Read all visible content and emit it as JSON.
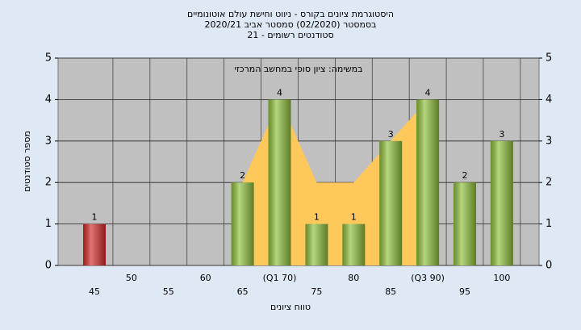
{
  "chart_data": {
    "type": "bar",
    "title": [
      "היסטוגרמת ציונים בקורס - ניווט וחישת עולם אוטונומיים",
      "בסמסטר  (02/2020)  סמסטר אביב 2020/21",
      "סטודנטים רשומים - 21"
    ],
    "annotation": "במשימה: ציון סופי במחשב המרכזי",
    "xlabel": "טווח ציונים",
    "ylabel": "מספר סטודנטים",
    "categories": [
      "45",
      "50",
      "55",
      "60",
      "65",
      "(Q1 70)",
      "75",
      "80",
      "85",
      "(Q3 90)",
      "95",
      "100"
    ],
    "values": [
      1,
      0,
      0,
      0,
      2,
      4,
      1,
      1,
      3,
      4,
      2,
      3
    ],
    "colors": [
      "#d42a2a",
      "#8fbf3a",
      "#8fbf3a",
      "#8fbf3a",
      "#8fbf3a",
      "#8fbf3a",
      "#8fbf3a",
      "#8fbf3a",
      "#8fbf3a",
      "#8fbf3a",
      "#8fbf3a",
      "#8fbf3a"
    ],
    "area": {
      "color": "#ffc85a",
      "values": [
        null,
        null,
        null,
        null,
        2,
        4,
        2,
        2,
        3,
        4,
        null,
        null
      ]
    },
    "ylim": [
      0,
      5
    ],
    "yticks": [
      0,
      1,
      2,
      3,
      4,
      5
    ],
    "y2lim": [
      0,
      5
    ],
    "y2ticks": [
      0,
      1,
      2,
      3,
      4,
      5
    ],
    "grid": true
  }
}
